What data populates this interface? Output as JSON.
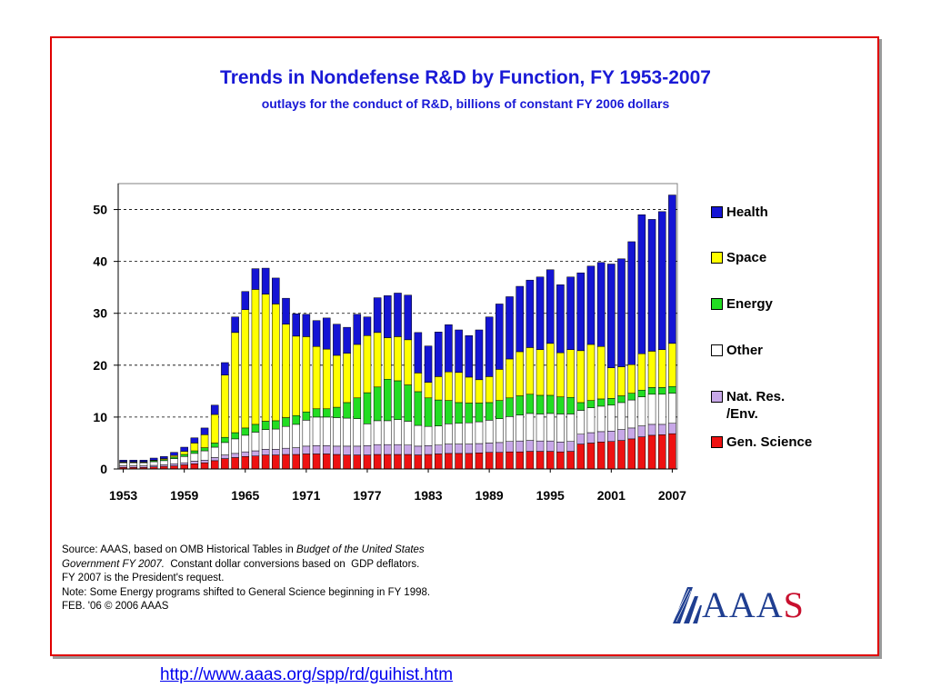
{
  "title": "Trends in Nondefense R&D by Function, FY 1953-2007",
  "subtitle": "outlays for the conduct of R&D, billions of constant FY 2006 dollars",
  "colors": {
    "health": "#1414d4",
    "space": "#ffff00",
    "energy": "#22dd22",
    "other": "#ffffff",
    "natres": "#c8a8e8",
    "genscience": "#ee1111",
    "title": "#1a1ad6",
    "frame": "#e00000"
  },
  "source_note": {
    "line1_prefix": "Source: AAAS, based on OMB Historical Tables in ",
    "line1_italic": "Budget of the United States",
    "line2_italic": "Government FY 2007.",
    "line2_rest": "  Constant dollar conversions based on  GDP deflators.",
    "line3": "FY 2007 is the President's request.",
    "line4": "Note: Some Energy programs shifted to General Science beginning in FY 1998.",
    "line5": "FEB. '06 © 2006 AAAS"
  },
  "logo": {
    "text_main": "AAA",
    "text_last": "S"
  },
  "footer_link": "http://www.aaas.org/spp/rd/guihist.htm",
  "chart_data": {
    "type": "bar",
    "stacked": true,
    "grid": "horizontal dashed",
    "legend_position": "right",
    "ylim": [
      0,
      55
    ],
    "y_ticks": [
      0,
      10,
      20,
      30,
      40,
      50
    ],
    "x_tick_labels": [
      "1953",
      "1959",
      "1965",
      "1971",
      "1977",
      "1983",
      "1989",
      "1995",
      "2001",
      "2007"
    ],
    "categories": [
      1953,
      1954,
      1955,
      1956,
      1957,
      1958,
      1959,
      1960,
      1961,
      1962,
      1963,
      1964,
      1965,
      1966,
      1967,
      1968,
      1969,
      1970,
      1971,
      1972,
      1973,
      1974,
      1975,
      1976,
      1977,
      1978,
      1979,
      1980,
      1981,
      1982,
      1983,
      1984,
      1985,
      1986,
      1987,
      1988,
      1989,
      1990,
      1991,
      1992,
      1993,
      1994,
      1995,
      1996,
      1997,
      1998,
      1999,
      2000,
      2001,
      2002,
      2003,
      2004,
      2005,
      2006,
      2007
    ],
    "series": [
      {
        "name": "Gen. Science",
        "color_key": "genscience",
        "values": [
          0.3,
          0.3,
          0.3,
          0.4,
          0.5,
          0.6,
          0.8,
          1.0,
          1.2,
          1.6,
          2.0,
          2.2,
          2.4,
          2.5,
          2.7,
          2.7,
          2.8,
          2.8,
          2.9,
          2.9,
          2.9,
          2.8,
          2.7,
          2.7,
          2.7,
          2.8,
          2.8,
          2.8,
          2.8,
          2.7,
          2.8,
          2.9,
          3.0,
          3.0,
          3.0,
          3.1,
          3.2,
          3.2,
          3.3,
          3.3,
          3.4,
          3.4,
          3.4,
          3.3,
          3.4,
          4.8,
          5.0,
          5.2,
          5.3,
          5.5,
          5.8,
          6.2,
          6.5,
          6.6,
          6.8
        ]
      },
      {
        "name": "Nat. Res. /Env.",
        "color_key": "natres",
        "values": [
          0.3,
          0.3,
          0.3,
          0.3,
          0.3,
          0.4,
          0.4,
          0.5,
          0.5,
          0.6,
          0.7,
          0.8,
          0.9,
          1.0,
          1.1,
          1.1,
          1.2,
          1.3,
          1.5,
          1.6,
          1.6,
          1.6,
          1.7,
          1.7,
          1.8,
          1.9,
          1.9,
          1.9,
          1.8,
          1.7,
          1.7,
          1.7,
          1.8,
          1.8,
          1.8,
          1.8,
          1.8,
          1.9,
          2.0,
          2.1,
          2.1,
          2.0,
          2.0,
          1.9,
          1.9,
          1.9,
          2.0,
          2.0,
          2.0,
          2.1,
          2.1,
          2.1,
          2.1,
          2.0,
          2.0
        ]
      },
      {
        "name": "Other",
        "color_key": "other",
        "values": [
          0.6,
          0.6,
          0.6,
          0.7,
          0.8,
          1.0,
          1.2,
          1.5,
          1.8,
          2.0,
          2.4,
          2.8,
          3.2,
          3.6,
          3.8,
          3.9,
          4.2,
          4.5,
          5.0,
          5.5,
          5.5,
          5.5,
          5.4,
          5.3,
          4.2,
          4.6,
          4.6,
          4.8,
          4.6,
          4.0,
          3.7,
          3.7,
          3.9,
          4.0,
          4.1,
          4.2,
          4.4,
          4.6,
          4.8,
          5.0,
          5.2,
          5.2,
          5.3,
          5.4,
          5.3,
          4.6,
          4.8,
          4.9,
          5.0,
          5.2,
          5.4,
          5.6,
          5.8,
          5.8,
          5.8
        ]
      },
      {
        "name": "Energy",
        "color_key": "energy",
        "values": [
          0.1,
          0.1,
          0.1,
          0.2,
          0.2,
          0.3,
          0.4,
          0.5,
          0.6,
          0.8,
          1.0,
          1.2,
          1.4,
          1.5,
          1.6,
          1.6,
          1.7,
          1.7,
          1.6,
          1.6,
          1.6,
          2.0,
          3.0,
          4.0,
          6.0,
          6.5,
          8.0,
          7.5,
          7.0,
          6.5,
          5.5,
          5.0,
          4.5,
          4.0,
          3.8,
          3.6,
          3.4,
          3.5,
          3.6,
          3.7,
          3.7,
          3.6,
          3.5,
          3.3,
          3.2,
          1.5,
          1.4,
          1.4,
          1.3,
          1.3,
          1.3,
          1.3,
          1.3,
          1.3,
          1.3
        ]
      },
      {
        "name": "Space",
        "color_key": "space",
        "values": [
          0.1,
          0.1,
          0.1,
          0.1,
          0.2,
          0.3,
          0.6,
          1.5,
          2.5,
          5.5,
          12.0,
          19.3,
          22.8,
          26.0,
          24.5,
          22.5,
          18.0,
          15.3,
          14.5,
          12.0,
          11.5,
          10.0,
          9.5,
          10.3,
          11.0,
          10.5,
          8.0,
          8.5,
          8.7,
          3.6,
          3.0,
          4.5,
          5.5,
          5.8,
          5.0,
          4.5,
          5.0,
          6.0,
          7.5,
          8.5,
          9.0,
          8.8,
          10.0,
          8.5,
          9.2,
          10.0,
          10.8,
          10.1,
          5.9,
          5.6,
          5.5,
          7.0,
          7.0,
          7.3,
          8.3
        ]
      },
      {
        "name": "Health",
        "color_key": "health",
        "values": [
          0.3,
          0.3,
          0.3,
          0.4,
          0.4,
          0.6,
          0.8,
          1.0,
          1.3,
          1.8,
          2.4,
          3.0,
          3.5,
          4.0,
          5.0,
          5.0,
          5.0,
          4.3,
          4.3,
          5.0,
          6.0,
          6.0,
          5.0,
          5.8,
          3.6,
          6.7,
          8.1,
          8.4,
          8.6,
          7.8,
          7.0,
          8.6,
          9.1,
          8.2,
          8.0,
          9.6,
          11.5,
          12.6,
          12.0,
          12.6,
          13.0,
          14.0,
          14.2,
          13.1,
          14.0,
          15.0,
          15.1,
          16.2,
          20.0,
          20.8,
          23.7,
          26.8,
          25.4,
          26.6,
          28.6
        ]
      }
    ]
  }
}
